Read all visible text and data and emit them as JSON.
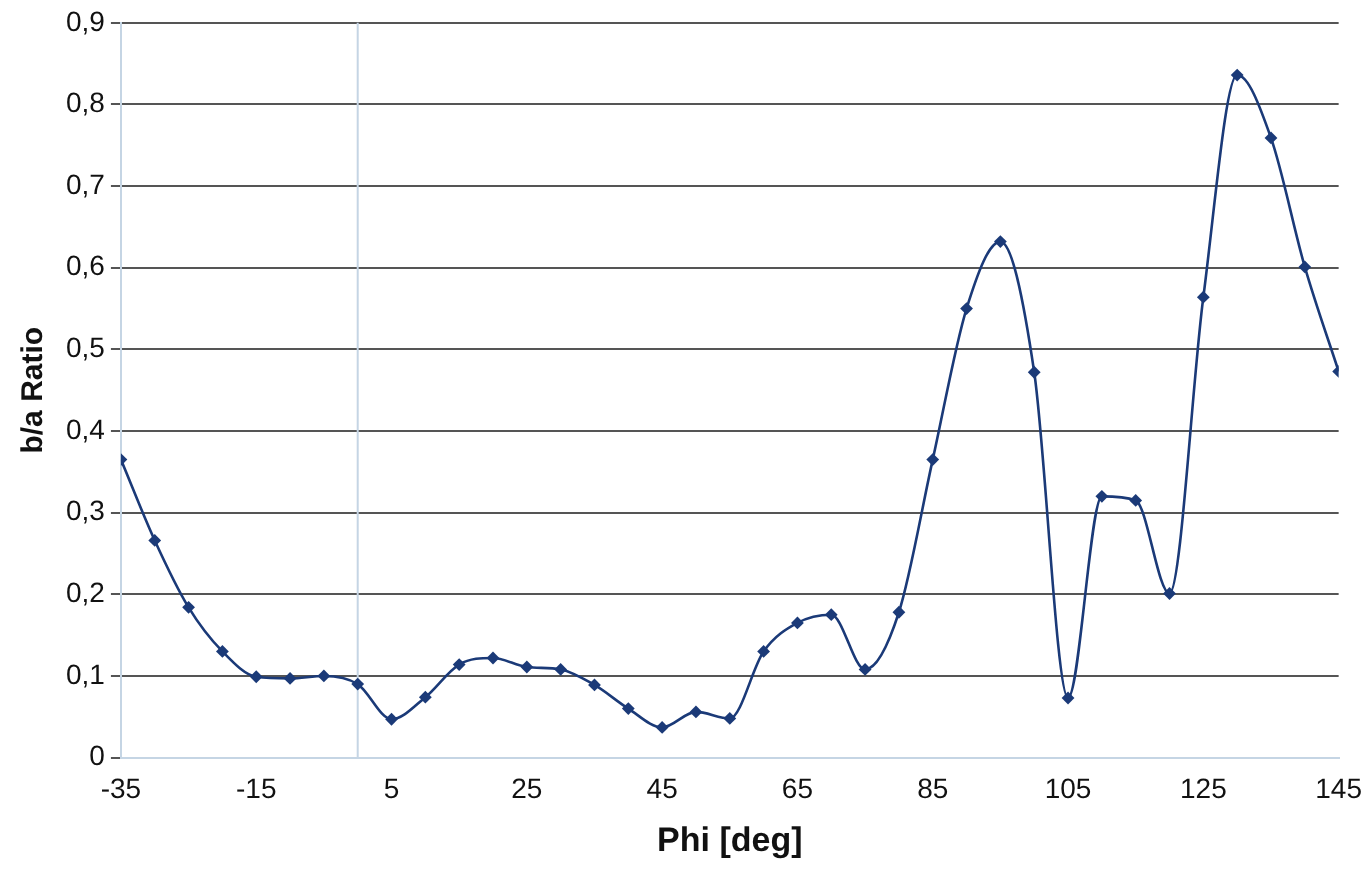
{
  "chart_data": {
    "type": "line",
    "xlabel": "Phi [deg]",
    "ylabel": "b/a Ratio",
    "x": [
      -35,
      -30,
      -25,
      -20,
      -15,
      -10,
      -5,
      0,
      5,
      10,
      15,
      20,
      25,
      30,
      35,
      40,
      45,
      50,
      55,
      60,
      65,
      70,
      75,
      80,
      85,
      90,
      95,
      100,
      105,
      110,
      115,
      120,
      125,
      130,
      135,
      140,
      145
    ],
    "series": [
      {
        "color": "#1b3a78",
        "values": [
          0.365,
          0.266,
          0.184,
          0.13,
          0.099,
          0.097,
          0.1,
          0.09,
          0.047,
          0.074,
          0.114,
          0.122,
          0.111,
          0.108,
          0.089,
          0.06,
          0.037,
          0.056,
          0.048,
          0.13,
          0.165,
          0.175,
          0.108,
          0.178,
          0.365,
          0.55,
          0.632,
          0.472,
          0.073,
          0.32,
          0.315,
          0.201,
          0.564,
          0.836,
          0.759,
          0.601,
          0.473
        ]
      }
    ],
    "xlim": [
      -35,
      145
    ],
    "xticks": [
      -35,
      -15,
      5,
      25,
      45,
      65,
      85,
      105,
      125,
      145
    ],
    "ylim": [
      0,
      0.9
    ],
    "yticks": [
      {
        "value": 0,
        "label": "0"
      },
      {
        "value": 0.1,
        "label": "0,1"
      },
      {
        "value": 0.2,
        "label": "0,2"
      },
      {
        "value": 0.3,
        "label": "0,3"
      },
      {
        "value": 0.4,
        "label": "0,4"
      },
      {
        "value": 0.5,
        "label": "0,5"
      },
      {
        "value": 0.6,
        "label": "0,6"
      },
      {
        "value": 0.7,
        "label": "0,7"
      },
      {
        "value": 0.8,
        "label": "0,8"
      },
      {
        "value": 0.9,
        "label": "0,9"
      }
    ],
    "ref_lines": [
      {
        "axis": "x",
        "value": 0,
        "color": "#c5d5e4"
      }
    ],
    "grid": "y",
    "legend": false,
    "marker": "diamond",
    "line_style": "solid"
  }
}
